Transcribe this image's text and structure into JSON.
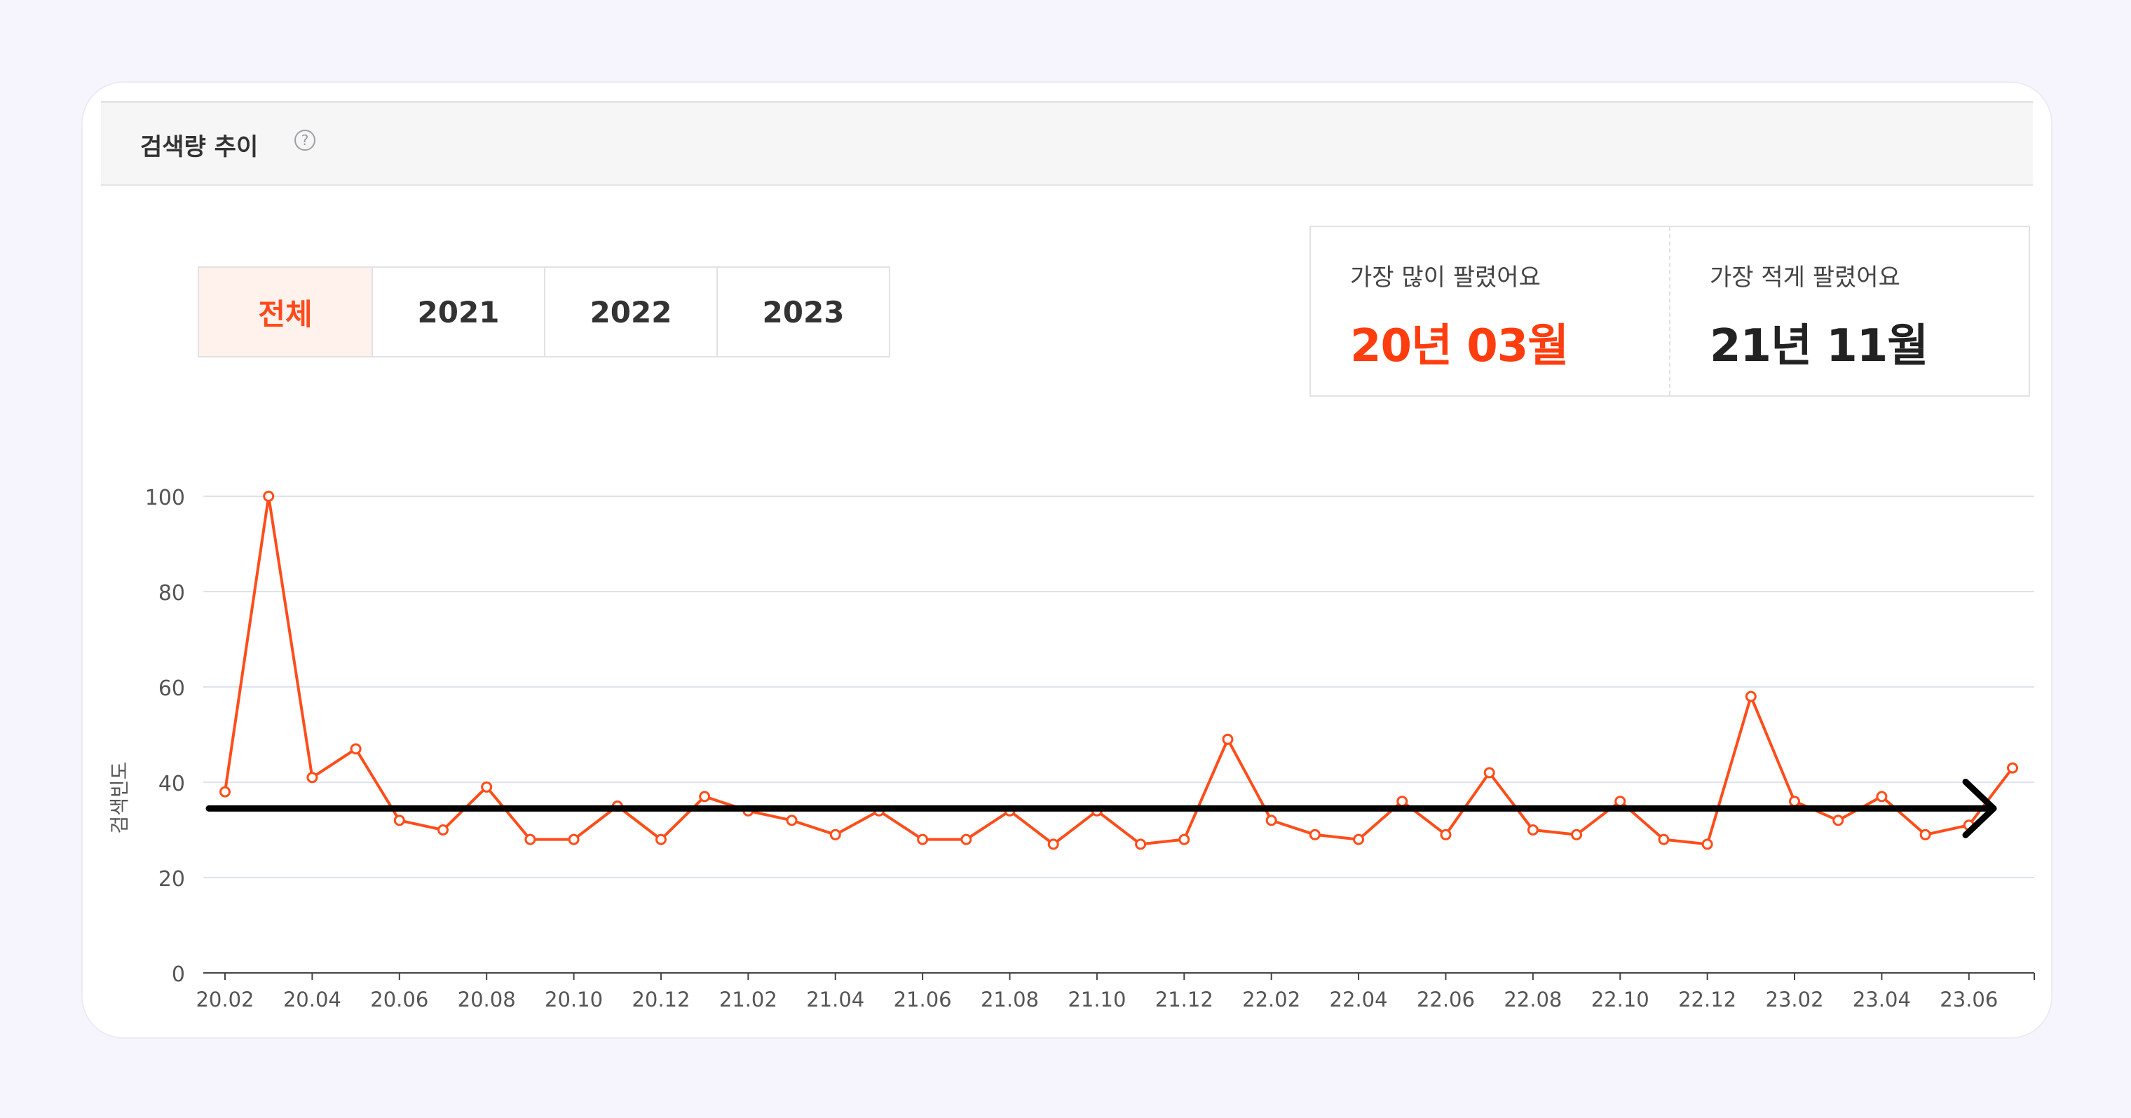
{
  "card": {
    "title": "검색량 추이",
    "help_icon": "question-circle-icon"
  },
  "tabs": [
    {
      "label": "전체",
      "active": true
    },
    {
      "label": "2021",
      "active": false
    },
    {
      "label": "2022",
      "active": false
    },
    {
      "label": "2023",
      "active": false
    }
  ],
  "stats": {
    "most_label": "가장 많이 팔렸어요",
    "most_value": "20년 03월",
    "least_label": "가장 적게 팔렸어요",
    "least_value": "21년 11월"
  },
  "colors": {
    "accent": "#ff4d1a",
    "grid": "#dde3ee",
    "trend_arrow": "#000000"
  },
  "chart_data": {
    "type": "line",
    "ylabel": "검색빈도",
    "xlabel": "",
    "ylim": [
      0,
      100
    ],
    "yticks": [
      0,
      20,
      40,
      60,
      80,
      100
    ],
    "xtick_labels": [
      "20.02",
      "20.04",
      "20.06",
      "20.08",
      "20.10",
      "20.12",
      "21.02",
      "21.04",
      "21.06",
      "21.08",
      "21.10",
      "21.12",
      "22.02",
      "22.04",
      "22.06",
      "22.08",
      "22.10",
      "22.12",
      "23.02",
      "23.04",
      "23.06"
    ],
    "x": [
      "20.02",
      "20.03",
      "20.04",
      "20.05",
      "20.06",
      "20.07",
      "20.08",
      "20.09",
      "20.10",
      "20.11",
      "20.12",
      "21.01",
      "21.02",
      "21.03",
      "21.04",
      "21.05",
      "21.06",
      "21.07",
      "21.08",
      "21.09",
      "21.10",
      "21.11",
      "21.12",
      "22.01",
      "22.02",
      "22.03",
      "22.04",
      "22.05",
      "22.06",
      "22.07",
      "22.08",
      "22.09",
      "22.10",
      "22.11",
      "22.12",
      "23.01",
      "23.02",
      "23.03",
      "23.04",
      "23.05",
      "23.06",
      "23.07"
    ],
    "series": [
      {
        "values": [
          38,
          100,
          41,
          47,
          32,
          30,
          39,
          28,
          28,
          35,
          28,
          37,
          34,
          32,
          29,
          34,
          28,
          28,
          34,
          27,
          34,
          27,
          28,
          49,
          32,
          29,
          28,
          36,
          29,
          42,
          30,
          29,
          36,
          28,
          27,
          58,
          36,
          32,
          37,
          29,
          31,
          43
        ]
      }
    ],
    "grid": true,
    "trend_arrow": {
      "level": 34.5,
      "direction": "right"
    }
  }
}
